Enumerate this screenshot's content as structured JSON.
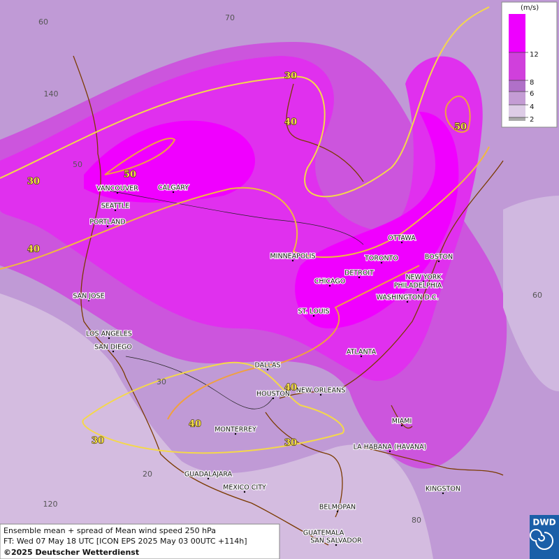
{
  "map": {
    "cities": [
      "VANCOUVER",
      "CALGARY",
      "SEATTLE",
      "PORTLAND",
      "MINNEAPOLIS",
      "TORONTO",
      "OTTAWA",
      "BOSTON",
      "DETROIT",
      "CHICAGO",
      "NEW YORK",
      "PHILADELPHIA",
      "WASHINGTON D.C.",
      "ST. LOUIS",
      "SAN JOSE",
      "LOS ANGELES",
      "SAN DIEGO",
      "DALLAS",
      "ATLANTA",
      "HOUSTON",
      "NEW ORLEANS",
      "MIAMI",
      "MONTERREY",
      "LA HABANA (HAVANA)",
      "GUADALAJARA",
      "MEXICO CITY",
      "KINGSTON",
      "BELMOPAN",
      "GUATEMALA",
      "SAN SALVADOR"
    ],
    "contour_labels": [
      30,
      40,
      30,
      50,
      40,
      50,
      40,
      40,
      30,
      30
    ],
    "graticule_labels": [
      70,
      60,
      140,
      50,
      60,
      30,
      20,
      120,
      80
    ]
  },
  "legend": {
    "unit": "(m/s)",
    "ticks": [
      12,
      8,
      6,
      4,
      2
    ]
  },
  "caption": {
    "line1": "Ensemble mean + spread of Mean wind speed 250 hPa",
    "line2": "FT: Wed 07 May 18 UTC [ICON EPS 2025 May 03 00UTC +114h]",
    "line3": "©2025 Deutscher Wetterdienst"
  },
  "logo": "DWD"
}
